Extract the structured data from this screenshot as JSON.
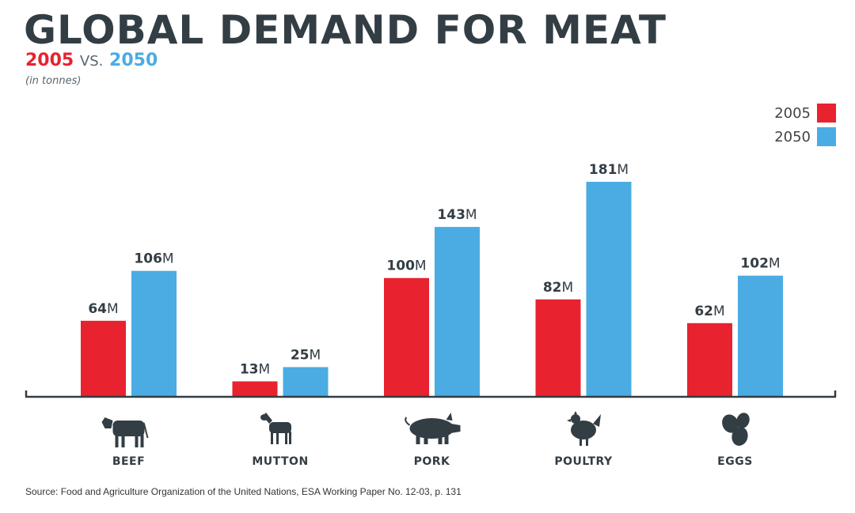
{
  "header": {
    "title": "GLOBAL DEMAND FOR MEAT",
    "subtitle_year_a": "2005",
    "subtitle_vs": "VS.",
    "subtitle_year_b": "2050",
    "unit": "(in tonnes)"
  },
  "colors": {
    "series_2005": "#e8222e",
    "series_2050": "#4aace2",
    "text": "#333d44"
  },
  "source": "Source: Food and Agriculture Organization of the United Nations, ESA Working Paper No. 12-03, p. 131",
  "chart_data": {
    "type": "bar",
    "title": "GLOBAL DEMAND FOR MEAT",
    "categories": [
      "BEEF",
      "MUTTON",
      "PORK",
      "POULTRY",
      "EGGS"
    ],
    "icons": [
      "cow-icon",
      "sheep-icon",
      "pig-icon",
      "chicken-icon",
      "eggs-icon"
    ],
    "series": [
      {
        "name": "2005",
        "values": [
          64,
          13,
          100,
          82,
          62
        ],
        "labels": [
          "64",
          "13",
          "100",
          "82",
          "62"
        ]
      },
      {
        "name": "2050",
        "values": [
          106,
          25,
          143,
          181,
          102
        ],
        "labels": [
          "106",
          "25",
          "143",
          "181",
          "102"
        ]
      }
    ],
    "value_suffix": "M",
    "ylim": [
      0,
      200
    ],
    "grid": false,
    "legend": "top-right",
    "xlabel": "",
    "ylabel": ""
  }
}
